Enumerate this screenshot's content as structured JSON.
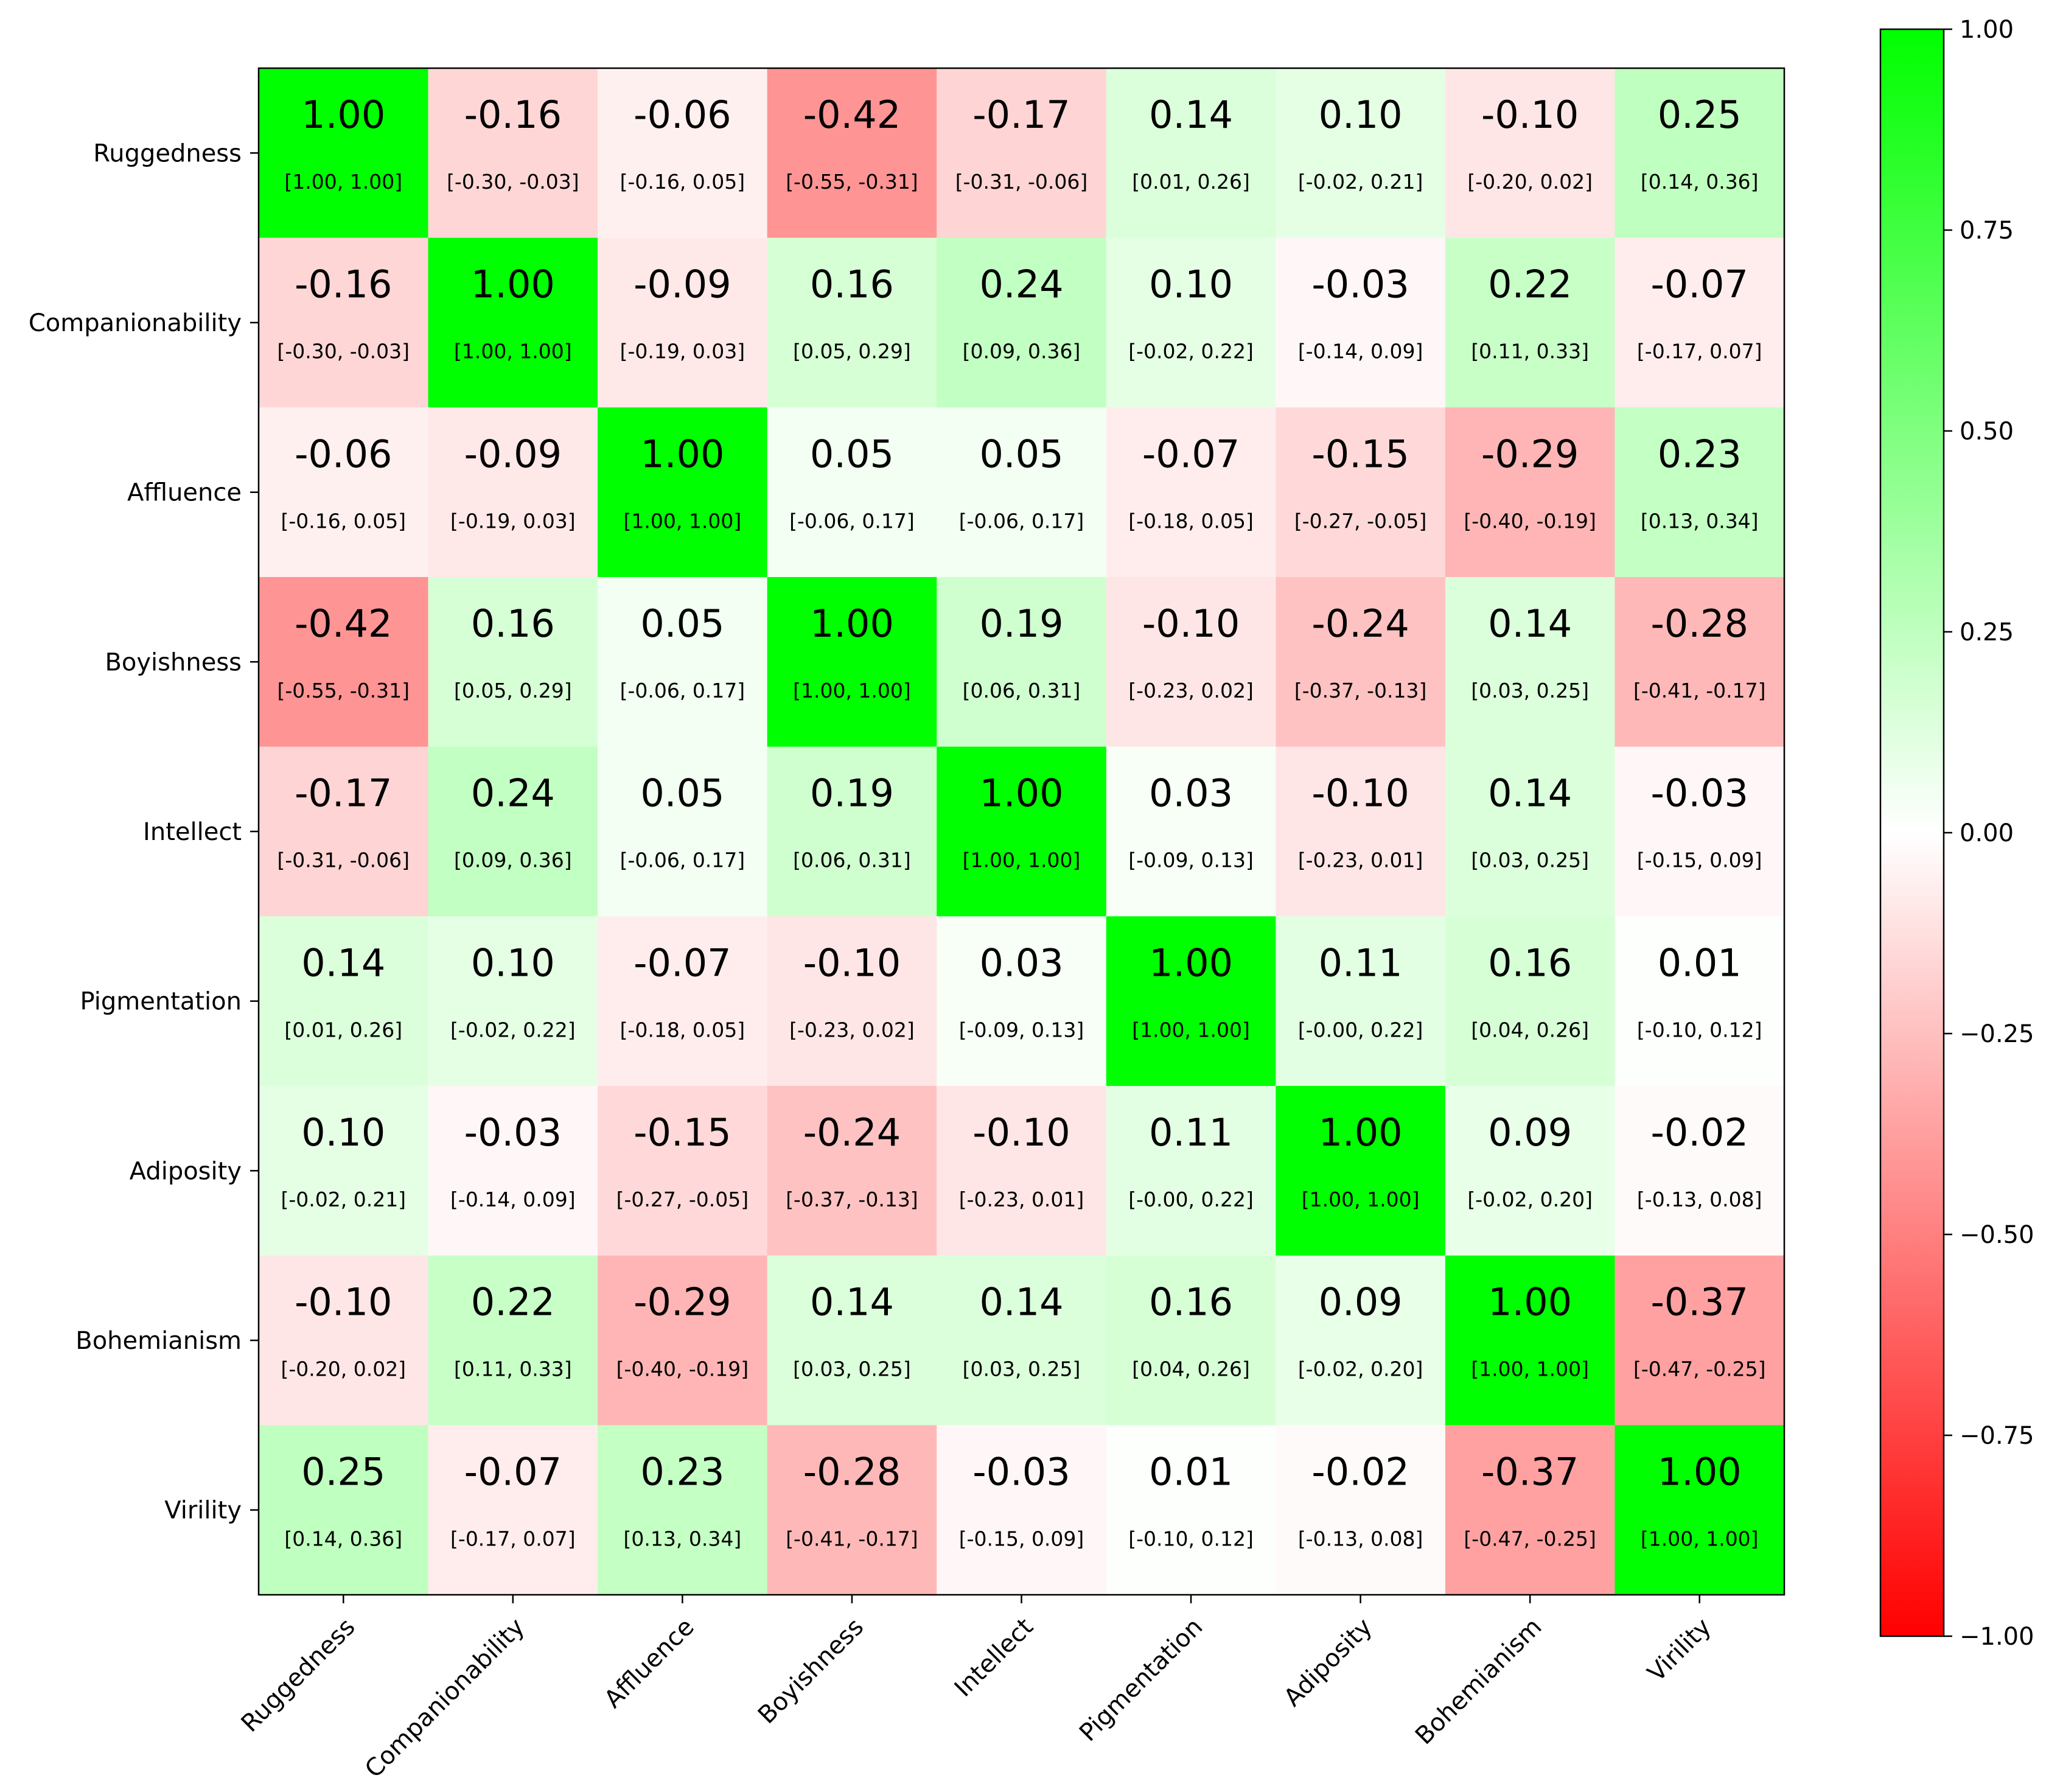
{
  "chart_data": {
    "type": "heatmap",
    "title": "",
    "xlabel": "",
    "ylabel": "",
    "categories": [
      "Ruggedness",
      "Companionability",
      "Affluence",
      "Boyishness",
      "Intellect",
      "Pigmentation",
      "Adiposity",
      "Bohemianism",
      "Virility"
    ],
    "values": [
      [
        1.0,
        -0.16,
        -0.06,
        -0.42,
        -0.17,
        0.14,
        0.1,
        -0.1,
        0.25
      ],
      [
        -0.16,
        1.0,
        -0.09,
        0.16,
        0.24,
        0.1,
        -0.03,
        0.22,
        -0.07
      ],
      [
        -0.06,
        -0.09,
        1.0,
        0.05,
        0.05,
        -0.07,
        -0.15,
        -0.29,
        0.23
      ],
      [
        -0.42,
        0.16,
        0.05,
        1.0,
        0.19,
        -0.1,
        -0.24,
        0.14,
        -0.28
      ],
      [
        -0.17,
        0.24,
        0.05,
        0.19,
        1.0,
        0.03,
        -0.1,
        0.14,
        -0.03
      ],
      [
        0.14,
        0.1,
        -0.07,
        -0.1,
        0.03,
        1.0,
        0.11,
        0.16,
        0.01
      ],
      [
        0.1,
        -0.03,
        -0.15,
        -0.24,
        -0.1,
        0.11,
        1.0,
        0.09,
        -0.02
      ],
      [
        -0.1,
        0.22,
        -0.29,
        0.14,
        0.14,
        0.16,
        0.09,
        1.0,
        -0.37
      ],
      [
        0.25,
        -0.07,
        0.23,
        -0.28,
        -0.03,
        0.01,
        -0.02,
        -0.37,
        1.0
      ]
    ],
    "value_labels": [
      [
        "1.00",
        "-0.16",
        "-0.06",
        "-0.42",
        "-0.17",
        "0.14",
        "0.10",
        "-0.10",
        "0.25"
      ],
      [
        "-0.16",
        "1.00",
        "-0.09",
        "0.16",
        "0.24",
        "0.10",
        "-0.03",
        "0.22",
        "-0.07"
      ],
      [
        "-0.06",
        "-0.09",
        "1.00",
        "0.05",
        "0.05",
        "-0.07",
        "-0.15",
        "-0.29",
        "0.23"
      ],
      [
        "-0.42",
        "0.16",
        "0.05",
        "1.00",
        "0.19",
        "-0.10",
        "-0.24",
        "0.14",
        "-0.28"
      ],
      [
        "-0.17",
        "0.24",
        "0.05",
        "0.19",
        "1.00",
        "0.03",
        "-0.10",
        "0.14",
        "-0.03"
      ],
      [
        "0.14",
        "0.10",
        "-0.07",
        "-0.10",
        "0.03",
        "1.00",
        "0.11",
        "0.16",
        "0.01"
      ],
      [
        "0.10",
        "-0.03",
        "-0.15",
        "-0.24",
        "-0.10",
        "0.11",
        "1.00",
        "0.09",
        "-0.02"
      ],
      [
        "-0.10",
        "0.22",
        "-0.29",
        "0.14",
        "0.14",
        "0.16",
        "0.09",
        "1.00",
        "-0.37"
      ],
      [
        "0.25",
        "-0.07",
        "0.23",
        "-0.28",
        "-0.03",
        "0.01",
        "-0.02",
        "-0.37",
        "1.00"
      ]
    ],
    "intervals": [
      [
        "[1.00, 1.00]",
        "[-0.30, -0.03]",
        "[-0.16, 0.05]",
        "[-0.55, -0.31]",
        "[-0.31, -0.06]",
        "[0.01, 0.26]",
        "[-0.02, 0.21]",
        "[-0.20, 0.02]",
        "[0.14, 0.36]"
      ],
      [
        "[-0.30, -0.03]",
        "[1.00, 1.00]",
        "[-0.19, 0.03]",
        "[0.05, 0.29]",
        "[0.09, 0.36]",
        "[-0.02, 0.22]",
        "[-0.14, 0.09]",
        "[0.11, 0.33]",
        "[-0.17, 0.07]"
      ],
      [
        "[-0.16, 0.05]",
        "[-0.19, 0.03]",
        "[1.00, 1.00]",
        "[-0.06, 0.17]",
        "[-0.06, 0.17]",
        "[-0.18, 0.05]",
        "[-0.27, -0.05]",
        "[-0.40, -0.19]",
        "[0.13, 0.34]"
      ],
      [
        "[-0.55, -0.31]",
        "[0.05, 0.29]",
        "[-0.06, 0.17]",
        "[1.00, 1.00]",
        "[0.06, 0.31]",
        "[-0.23, 0.02]",
        "[-0.37, -0.13]",
        "[0.03, 0.25]",
        "[-0.41, -0.17]"
      ],
      [
        "[-0.31, -0.06]",
        "[0.09, 0.36]",
        "[-0.06, 0.17]",
        "[0.06, 0.31]",
        "[1.00, 1.00]",
        "[-0.09, 0.13]",
        "[-0.23, 0.01]",
        "[0.03, 0.25]",
        "[-0.15, 0.09]"
      ],
      [
        "[0.01, 0.26]",
        "[-0.02, 0.22]",
        "[-0.18, 0.05]",
        "[-0.23, 0.02]",
        "[-0.09, 0.13]",
        "[1.00, 1.00]",
        "[-0.00, 0.22]",
        "[0.04, 0.26]",
        "[-0.10, 0.12]"
      ],
      [
        "[-0.02, 0.21]",
        "[-0.14, 0.09]",
        "[-0.27, -0.05]",
        "[-0.37, -0.13]",
        "[-0.23, 0.01]",
        "[-0.00, 0.22]",
        "[1.00, 1.00]",
        "[-0.02, 0.20]",
        "[-0.13, 0.08]"
      ],
      [
        "[-0.20, 0.02]",
        "[0.11, 0.33]",
        "[-0.40, -0.19]",
        "[0.03, 0.25]",
        "[0.03, 0.25]",
        "[0.04, 0.26]",
        "[-0.02, 0.20]",
        "[1.00, 1.00]",
        "[-0.47, -0.25]"
      ],
      [
        "[0.14, 0.36]",
        "[-0.17, 0.07]",
        "[0.13, 0.34]",
        "[-0.41, -0.17]",
        "[-0.15, 0.09]",
        "[-0.10, 0.12]",
        "[-0.13, 0.08]",
        "[-0.47, -0.25]",
        "[1.00, 1.00]"
      ]
    ],
    "colorbar": {
      "vmin": -1.0,
      "vmax": 1.0,
      "colormap": [
        "#ff0000",
        "#ffffff",
        "#00ff00"
      ],
      "ticks": [
        1.0,
        0.75,
        0.5,
        0.25,
        0.0,
        -0.25,
        -0.5,
        -0.75,
        -1.0
      ],
      "tick_labels": [
        "1.00",
        "0.75",
        "0.50",
        "0.25",
        "0.00",
        "−0.25",
        "−0.50",
        "−0.75",
        "−1.00"
      ]
    },
    "grid": false,
    "x_tick_rotation_deg": 45
  }
}
